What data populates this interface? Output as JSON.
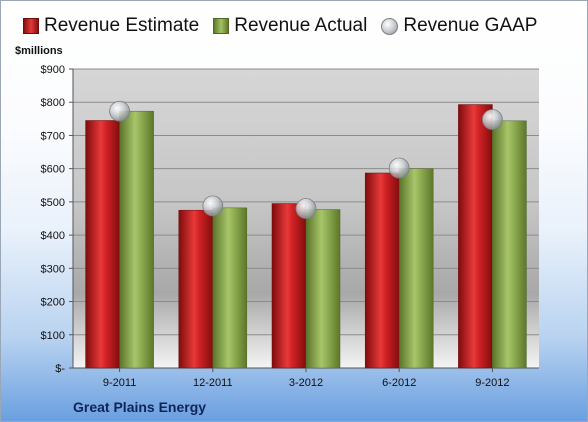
{
  "legend": {
    "estimate": "Revenue Estimate",
    "actual": "Revenue Actual",
    "gaap": "Revenue GAAP"
  },
  "colors": {
    "estimate": "#c8171c",
    "actual": "#8eab4f",
    "gaap": "#b8bcc0"
  },
  "footer": "Great Plains Energy",
  "chart_data": {
    "type": "bar",
    "ylabel": "$millions",
    "ylim": [
      0,
      900
    ],
    "yticks": [
      0,
      100,
      200,
      300,
      400,
      500,
      600,
      700,
      800,
      900
    ],
    "ytick_labels": [
      "$-",
      "$100",
      "$200",
      "$300",
      "$400",
      "$500",
      "$600",
      "$700",
      "$800",
      "$900"
    ],
    "categories": [
      "9-2011",
      "12-2011",
      "3-2012",
      "6-2012",
      "9-2012"
    ],
    "series": [
      {
        "name": "Revenue Estimate",
        "values": [
          745,
          475,
          495,
          587,
          793
        ]
      },
      {
        "name": "Revenue Actual",
        "values": [
          773,
          482,
          477,
          600,
          744
        ]
      },
      {
        "name": "Revenue GAAP",
        "values": [
          773,
          488,
          480,
          602,
          748
        ]
      }
    ],
    "grid": true,
    "legend_position": "top"
  }
}
